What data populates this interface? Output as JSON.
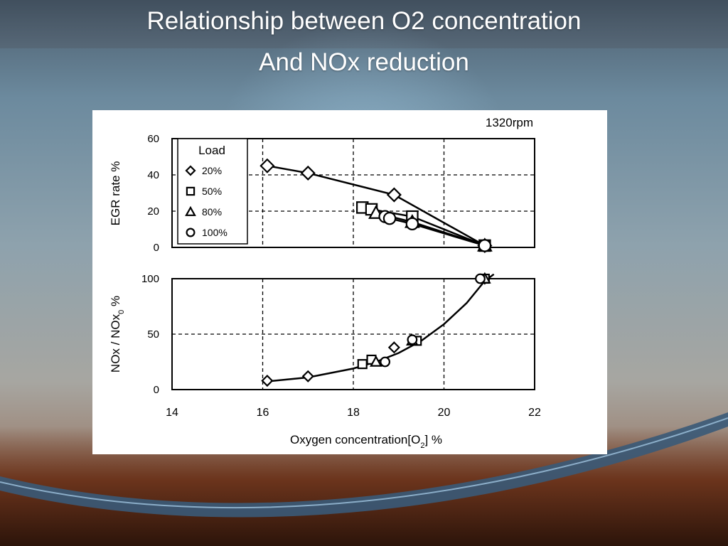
{
  "slide": {
    "title_line1": "Relationship between O2 concentration",
    "title_line2": "And NOx reduction"
  },
  "chart_data": [
    {
      "type": "scatter",
      "panel": "top",
      "annotation": "1320rpm",
      "ylabel": "EGR rate %",
      "xlim": [
        14,
        22
      ],
      "ylim": [
        0,
        60
      ],
      "yticks": [
        "0",
        "20",
        "40",
        "60"
      ],
      "grid": true,
      "legend_title": "Load",
      "legend_position": "top-left",
      "series": [
        {
          "name": "20%",
          "marker": "diamond",
          "x": [
            16.1,
            17.0,
            18.9,
            20.9
          ],
          "y": [
            45,
            41,
            29,
            1
          ]
        },
        {
          "name": "50%",
          "marker": "square",
          "x": [
            18.2,
            18.4,
            19.3,
            20.9
          ],
          "y": [
            22,
            21,
            17,
            1
          ]
        },
        {
          "name": "80%",
          "marker": "triangle",
          "x": [
            18.5,
            19.3,
            20.9
          ],
          "y": [
            19,
            14,
            1
          ]
        },
        {
          "name": "100%",
          "marker": "circle",
          "x": [
            18.7,
            18.8,
            19.3,
            20.9
          ],
          "y": [
            17,
            16,
            13,
            1
          ]
        }
      ]
    },
    {
      "type": "scatter",
      "panel": "bottom",
      "xlabel": "Oxygen concentration[O",
      "xlabel_subscript": "2",
      "xlabel_suffix": "] %",
      "ylabel": "NOx / NOx",
      "ylabel_subscript": "0",
      "ylabel_suffix": " %",
      "xlim": [
        14,
        22
      ],
      "ylim": [
        0,
        100
      ],
      "xticks": [
        "14",
        "16",
        "18",
        "20",
        "22"
      ],
      "yticks": [
        "0",
        "50",
        "100"
      ],
      "grid": true,
      "series": [
        {
          "name": "20%",
          "marker": "diamond",
          "x": [
            16.1,
            17.0,
            18.9,
            20.9
          ],
          "y": [
            8,
            12,
            38,
            100
          ]
        },
        {
          "name": "50%",
          "marker": "square",
          "x": [
            18.2,
            18.4,
            19.4,
            20.9
          ],
          "y": [
            23,
            27,
            44,
            100
          ]
        },
        {
          "name": "80%",
          "marker": "triangle",
          "x": [
            18.5,
            19.3,
            20.9
          ],
          "y": [
            25,
            44,
            100
          ]
        },
        {
          "name": "100%",
          "marker": "circle",
          "x": [
            18.7,
            19.3,
            20.8
          ],
          "y": [
            25,
            45,
            100
          ]
        }
      ],
      "fit_curve": {
        "x": [
          16.0,
          17.0,
          18.0,
          18.5,
          19.0,
          19.5,
          20.0,
          20.5,
          20.9,
          21.1
        ],
        "y": [
          7,
          11,
          19,
          25,
          33,
          44,
          59,
          78,
          98,
          104
        ]
      }
    }
  ]
}
